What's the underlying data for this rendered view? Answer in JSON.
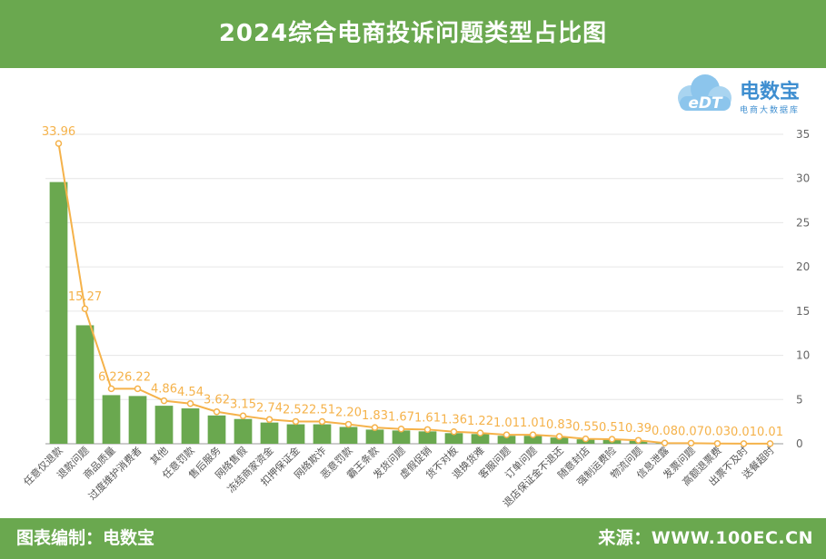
{
  "header": {
    "title": "2024综合电商投诉问题类型占比图"
  },
  "logo": {
    "brand": "电数宝",
    "subtitle": "电商大数据库",
    "mark": "eDT"
  },
  "footer": {
    "left": "图表编制：电数宝",
    "right": "来源：WWW.100EC.CN"
  },
  "colors": {
    "bar": "#6aa84f",
    "line": "#f5b24a",
    "header": "#6aa84f"
  },
  "chart_data": {
    "type": "bar",
    "ylim": [
      0,
      35
    ],
    "yticks": [
      0,
      5,
      10,
      15,
      20,
      25,
      30,
      35
    ],
    "grid": true,
    "categories": [
      "任意仅退款",
      "退款问题",
      "商品质量",
      "过度维护消费者",
      "其他",
      "任意罚款",
      "售后服务",
      "网络售假",
      "冻结商家资金",
      "扣押保证金",
      "网络欺诈",
      "恶意罚款",
      "霸王条款",
      "发货问题",
      "虚假促销",
      "货不对板",
      "退换货难",
      "客服问题",
      "订单问题",
      "退店保证金不退还",
      "随意封店",
      "强制运费险",
      "物流问题",
      "信息泄露",
      "发票问题",
      "高额退票费",
      "出票不及时",
      "送餐超时"
    ],
    "series": [
      {
        "type": "bar",
        "values": [
          29.6,
          13.4,
          5.5,
          5.4,
          4.3,
          4.0,
          3.2,
          2.8,
          2.4,
          2.2,
          2.2,
          1.9,
          1.6,
          1.5,
          1.4,
          1.2,
          1.1,
          0.9,
          0.9,
          0.7,
          0.5,
          0.45,
          0.35,
          0.07,
          0.06,
          0.03,
          0.01,
          0.01
        ]
      },
      {
        "type": "line",
        "values": [
          33.96,
          15.27,
          6.22,
          6.22,
          4.86,
          4.54,
          3.62,
          3.15,
          2.74,
          2.52,
          2.51,
          2.2,
          1.83,
          1.67,
          1.61,
          1.36,
          1.22,
          1.01,
          1.01,
          0.83,
          0.55,
          0.51,
          0.39,
          0.08,
          0.07,
          0.03,
          0.01,
          0.01
        ],
        "labels": [
          "33.96",
          "15.27",
          "6.22",
          "6.22",
          "4.86",
          "4.54",
          "3.62",
          "3.15",
          "2.74",
          "2.52",
          "2.51",
          "2.20",
          "1.83",
          "1.67",
          "1.61",
          "1.36",
          "1.22",
          "1.01",
          "1.01",
          "0.83",
          "0.55",
          "0.51",
          "0.39",
          "0.08",
          "0.07",
          "0.03",
          "0.01",
          "0.01"
        ]
      }
    ]
  }
}
